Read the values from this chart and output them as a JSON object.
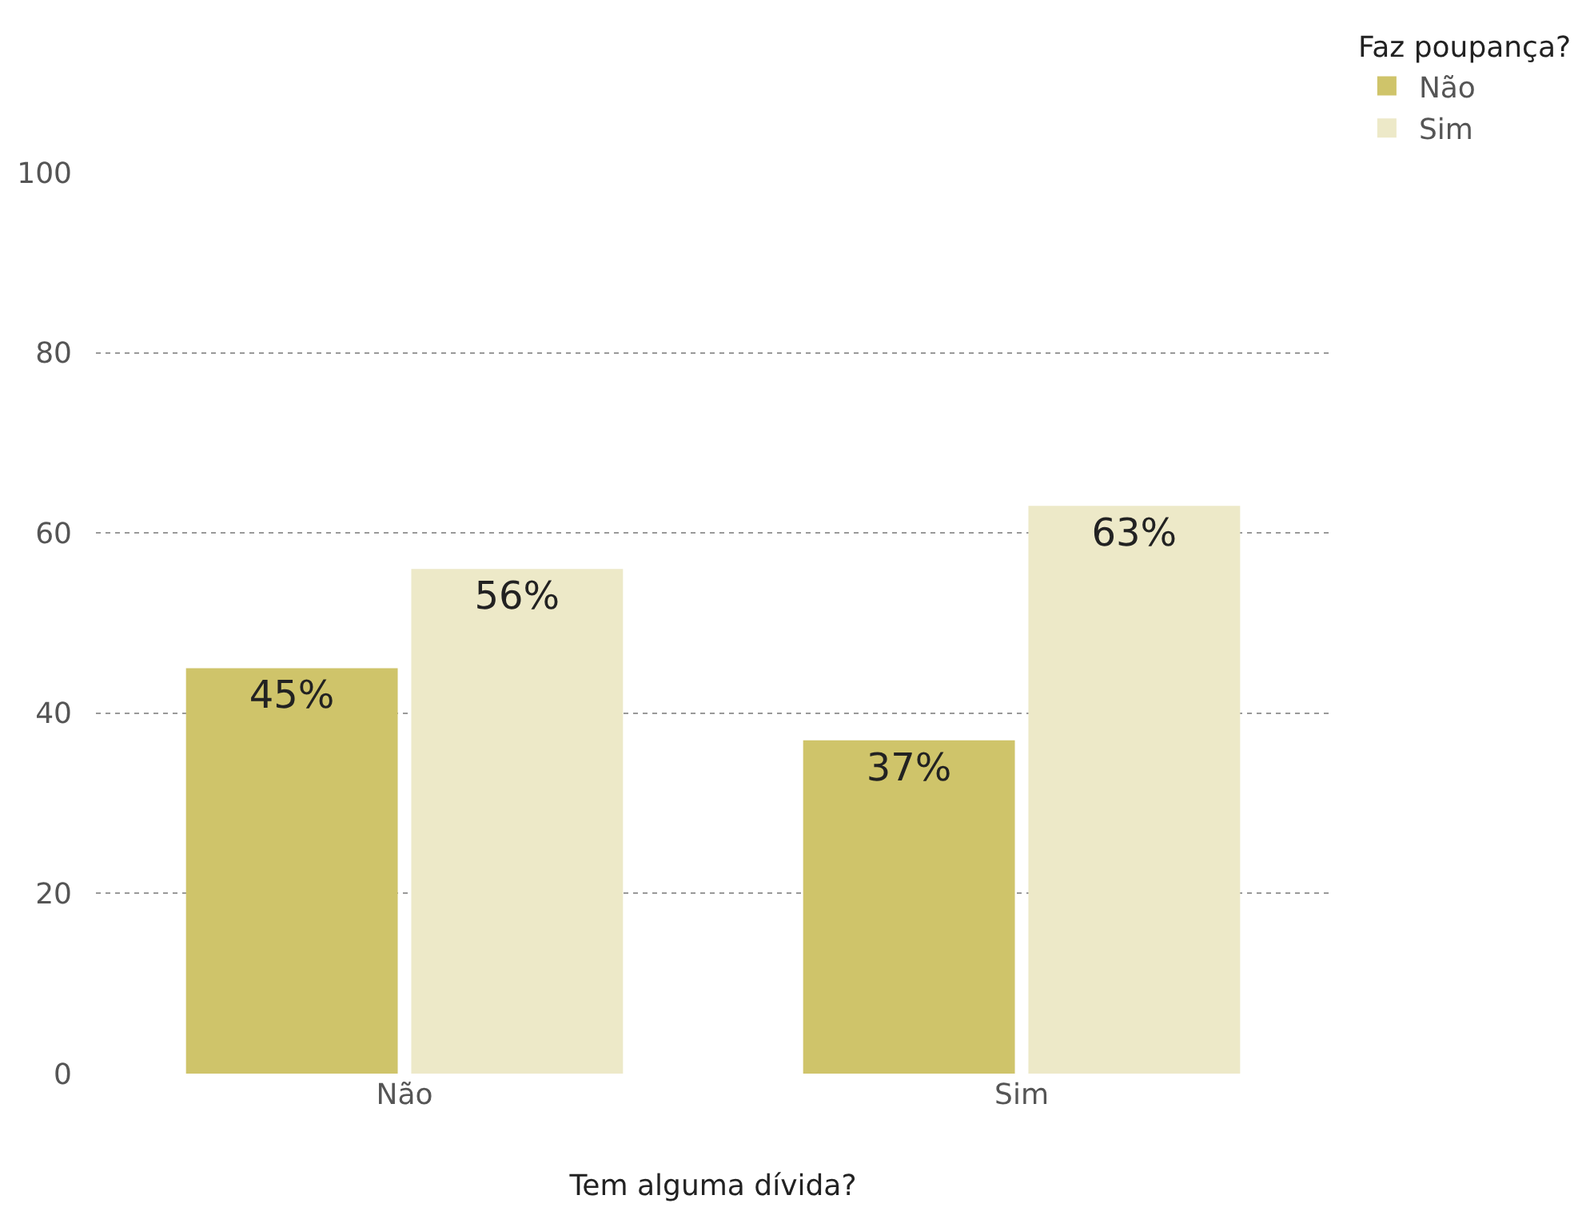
{
  "chart_data": {
    "type": "bar",
    "xlabel": "Tem alguma dívida?",
    "legend_title": "Faz poupança?",
    "categories": [
      "Não",
      "Sim"
    ],
    "series": [
      {
        "name": "Não",
        "color": "#cfc46a",
        "values": [
          45,
          37
        ],
        "value_labels": [
          "45%",
          "37%"
        ]
      },
      {
        "name": "Sim",
        "color": "#ede9c8",
        "values": [
          56,
          63
        ],
        "value_labels": [
          "56%",
          "63%"
        ]
      }
    ],
    "ylim": [
      0,
      100
    ],
    "yticks": [
      0,
      20,
      40,
      60,
      80,
      100
    ],
    "grid": "y",
    "legend": "top right"
  }
}
